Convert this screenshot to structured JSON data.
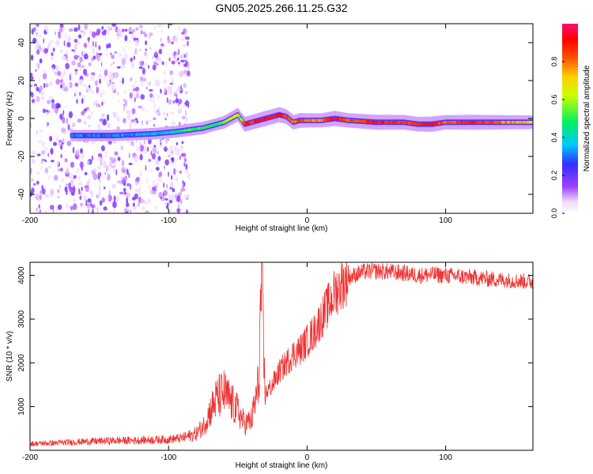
{
  "title": "GN05.2025.266.11.25.G32",
  "chart_data": [
    {
      "type": "heatmap",
      "xlabel": "Height of straight line (km)",
      "ylabel": "Frequency (Hz)",
      "xlim": [
        -200,
        163
      ],
      "ylim": [
        -50,
        50
      ],
      "xticks": [
        -200,
        -100,
        0,
        100
      ],
      "yticks": [
        -40,
        -20,
        0,
        20,
        40
      ],
      "colorbar": {
        "label": "Normalized spectral amplitude",
        "range": [
          0,
          1
        ],
        "ticks": [
          "0.0",
          "0.2",
          "0.4",
          "0.6",
          "0.8"
        ]
      },
      "ridge": {
        "x": [
          -170,
          -140,
          -110,
          -95,
          -85,
          -75,
          -65,
          -60,
          -55,
          -50,
          -48,
          -45,
          -40,
          -35,
          -30,
          -25,
          -20,
          -15,
          -10,
          -5,
          0,
          10,
          20,
          30,
          50,
          70,
          80,
          90,
          100,
          120,
          140,
          163
        ],
        "freq": [
          -9,
          -9,
          -8,
          -7,
          -6,
          -5,
          -3,
          -2,
          0,
          2,
          0,
          -3,
          -2,
          -1,
          0,
          1,
          2,
          1,
          -2,
          -1,
          -1,
          -1,
          0,
          -1,
          -2,
          -2,
          -3,
          -3,
          -2,
          -2,
          -2,
          -2
        ],
        "amplitude": [
          0.3,
          0.3,
          0.35,
          0.4,
          0.5,
          0.5,
          0.45,
          0.55,
          0.6,
          0.7,
          0.5,
          0.9,
          0.85,
          0.9,
          0.95,
          0.9,
          0.95,
          0.85,
          0.8,
          0.85,
          0.8,
          0.75,
          0.95,
          0.8,
          0.9,
          0.85,
          0.85,
          0.95,
          0.8,
          0.9,
          0.8,
          0.7
        ]
      }
    },
    {
      "type": "line",
      "xlabel": "Height of straight line (km)",
      "ylabel": "SNR (10 * v/v)",
      "xlim": [
        -200,
        163
      ],
      "ylim": [
        0,
        4300
      ],
      "xticks": [
        -200,
        -100,
        0,
        100
      ],
      "yticks": [
        1000,
        2000,
        3000,
        4000
      ],
      "series": [
        {
          "name": "SNR",
          "color": "#ee3333",
          "x": [
            -200,
            -180,
            -160,
            -140,
            -120,
            -100,
            -90,
            -80,
            -75,
            -70,
            -65,
            -60,
            -55,
            -50,
            -45,
            -40,
            -35,
            -33,
            -31,
            -30,
            -25,
            -20,
            -15,
            -10,
            -5,
            0,
            5,
            10,
            15,
            20,
            25,
            30,
            40,
            50,
            60,
            70,
            80,
            90,
            100,
            110,
            120,
            130,
            140,
            150,
            163
          ],
          "y": [
            150,
            170,
            200,
            220,
            230,
            250,
            280,
            380,
            550,
            900,
            1200,
            1300,
            1100,
            900,
            600,
            700,
            1500,
            3900,
            1700,
            1300,
            1500,
            1800,
            2000,
            2200,
            2300,
            2500,
            2700,
            3000,
            3300,
            3600,
            3800,
            3950,
            4080,
            4100,
            4080,
            4050,
            4000,
            4020,
            4000,
            3980,
            3950,
            3920,
            3900,
            3880,
            3850
          ]
        }
      ]
    }
  ]
}
